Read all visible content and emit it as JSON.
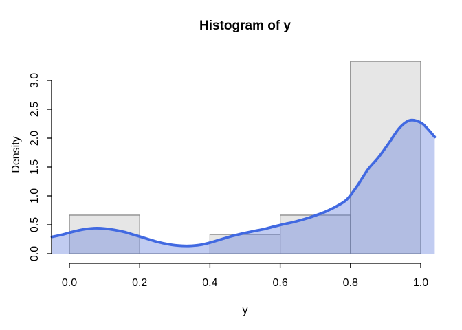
{
  "chart_data": {
    "type": "bar",
    "subtype": "histogram-with-density-overlay",
    "title": "Histogram of y",
    "xlabel": "y",
    "ylabel": "Density",
    "x_tick_labels": [
      "0.0",
      "0.2",
      "0.4",
      "0.6",
      "0.8",
      "1.0"
    ],
    "x_tick_values": [
      0,
      0.2,
      0.4,
      0.6,
      0.8,
      1.0
    ],
    "y_tick_labels": [
      "0.0",
      "0.5",
      "1.0",
      "1.5",
      "2.0",
      "2.5",
      "3.0"
    ],
    "y_tick_values": [
      0,
      0.5,
      1.0,
      1.5,
      2.0,
      2.5,
      3.0
    ],
    "xlim": [
      -0.05,
      1.05
    ],
    "ylim": [
      0,
      3.4
    ],
    "grid": false,
    "legend": null,
    "histogram": {
      "bin_edges": [
        0,
        0.2,
        0.4,
        0.6,
        0.8,
        1.0
      ],
      "densities": [
        0.667,
        0,
        0.333,
        0.667,
        3.333
      ]
    },
    "density_curve": {
      "points": [
        [
          -0.05,
          0.29
        ],
        [
          -0.02,
          0.33
        ],
        [
          0.01,
          0.38
        ],
        [
          0.04,
          0.42
        ],
        [
          0.07,
          0.44
        ],
        [
          0.1,
          0.435
        ],
        [
          0.13,
          0.41
        ],
        [
          0.16,
          0.37
        ],
        [
          0.19,
          0.315
        ],
        [
          0.22,
          0.26
        ],
        [
          0.25,
          0.205
        ],
        [
          0.28,
          0.165
        ],
        [
          0.31,
          0.14
        ],
        [
          0.34,
          0.135
        ],
        [
          0.37,
          0.15
        ],
        [
          0.4,
          0.19
        ],
        [
          0.43,
          0.245
        ],
        [
          0.46,
          0.3
        ],
        [
          0.49,
          0.345
        ],
        [
          0.52,
          0.385
        ],
        [
          0.55,
          0.42
        ],
        [
          0.58,
          0.465
        ],
        [
          0.61,
          0.51
        ],
        [
          0.64,
          0.55
        ],
        [
          0.67,
          0.6
        ],
        [
          0.7,
          0.66
        ],
        [
          0.73,
          0.73
        ],
        [
          0.76,
          0.82
        ],
        [
          0.79,
          0.94
        ],
        [
          0.82,
          1.18
        ],
        [
          0.85,
          1.46
        ],
        [
          0.88,
          1.67
        ],
        [
          0.91,
          1.92
        ],
        [
          0.94,
          2.18
        ],
        [
          0.97,
          2.31
        ],
        [
          1.0,
          2.27
        ],
        [
          1.02,
          2.16
        ],
        [
          1.04,
          2.02
        ]
      ]
    },
    "colors": {
      "bar_fill": "#e6e6e6",
      "bar_border": "#7f7f7f",
      "curve": "#4169e1",
      "curve_fill_rgba": "rgba(99,127,219,0.40)",
      "axis": "#000000",
      "background": "#ffffff"
    }
  }
}
